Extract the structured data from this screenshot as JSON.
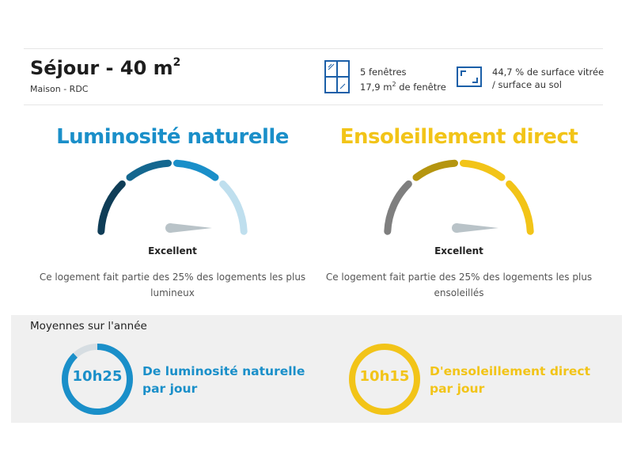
{
  "room": {
    "title": "Séjour - 40 m",
    "title_sup": "2",
    "subtitle": "Maison - RDC"
  },
  "windows": {
    "icon": "window-icon",
    "count_text": "5 fenêtres",
    "area_text": "17,9 m",
    "area_sup": "2",
    "area_suffix": " de fenêtre"
  },
  "glazing": {
    "icon": "surface-ratio-icon",
    "line1": "44,7 % de surface vitrée",
    "line2": "/ surface au sol"
  },
  "luminosity": {
    "heading": "Luminosité naturelle",
    "rating": "Excellent",
    "description_line1": "Ce logement fait partie des 25% des logements les plus",
    "description_line2": "lumineux",
    "level": 0.75,
    "color": "#1a8fc9",
    "segment_colors": [
      "#0f3d57",
      "#14678f",
      "#1a8fc9",
      "#bfdfee"
    ]
  },
  "sunshine": {
    "heading": "Ensoleillement direct",
    "rating": "Excellent",
    "description_line1": "Ce logement fait partie des 25% des logements les plus",
    "description_line2": "ensoleillés",
    "level": 0.75,
    "color": "#f2c418",
    "segment_colors": [
      "#7f7f7f",
      "#b5950f",
      "#f2c418",
      "#f2c418"
    ]
  },
  "yearly": {
    "title": "Moyennes sur l'année",
    "luminosity": {
      "value": "10h25",
      "label_line1": "De luminosité naturelle",
      "label_line2": "par jour",
      "fraction": 0.88,
      "color": "#1a8fc9",
      "track_color": "#d6dde2"
    },
    "sunshine": {
      "value": "10h15",
      "label_line1": "D'ensoleillement direct",
      "label_line2": "par jour",
      "fraction": 1.0,
      "color": "#f2c418",
      "track_color": "#e4e0cf"
    }
  }
}
